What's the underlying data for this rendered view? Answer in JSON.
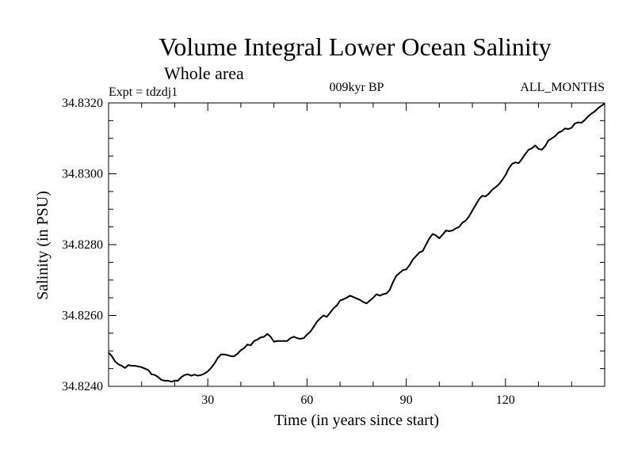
{
  "chart_data": {
    "type": "line",
    "title": "Volume Integral Lower Ocean Salinity",
    "subtitle": "Whole area",
    "experiment_label": "Expt = tdzdj1",
    "period_label": "009kyr BP",
    "months_label": "ALL_MONTHS",
    "xlabel": "Time (in years since start)",
    "ylabel": "Salinity (in PSU)",
    "xlim": [
      0,
      150
    ],
    "ylim": [
      34.824,
      34.832
    ],
    "x_ticks": [
      30,
      60,
      90,
      120
    ],
    "x_tick_labels": [
      "30",
      "60",
      "90",
      "120"
    ],
    "y_ticks": [
      34.824,
      34.826,
      34.828,
      34.83,
      34.832
    ],
    "y_tick_labels": [
      "34.8240",
      "34.8260",
      "34.8280",
      "34.8300",
      "34.8320"
    ],
    "series": [
      {
        "name": "Salinity",
        "color": "#000000",
        "x": [
          0,
          1,
          2,
          3,
          4,
          5,
          6,
          7,
          8,
          10,
          12,
          13,
          14,
          15,
          16,
          17,
          18,
          19,
          20,
          21,
          22,
          23,
          24,
          25,
          26,
          27,
          28,
          29,
          30,
          31,
          32,
          33,
          34,
          35,
          36,
          37,
          38,
          39,
          40,
          41,
          42,
          43,
          44,
          45,
          46,
          47,
          48,
          49,
          50,
          51,
          52,
          53,
          54,
          55,
          56,
          57,
          58,
          59,
          60,
          61,
          62,
          63,
          64,
          65,
          66,
          67,
          68,
          69,
          70,
          71,
          72,
          73,
          74,
          75,
          76,
          77,
          78,
          79,
          80,
          81,
          82,
          83,
          84,
          85,
          86,
          87,
          88,
          89,
          90,
          91,
          92,
          93,
          94,
          95,
          96,
          97,
          98,
          99,
          100,
          101,
          102,
          103,
          104,
          105,
          106,
          107,
          108,
          109,
          110,
          111,
          112,
          113,
          114,
          115,
          116,
          117,
          118,
          119,
          120,
          121,
          122,
          123,
          124,
          125,
          126,
          127,
          128,
          129,
          130,
          131,
          132,
          133,
          134,
          135,
          136,
          137,
          138,
          139,
          140,
          141,
          142,
          143,
          144,
          145,
          146,
          147,
          148,
          149,
          150
        ],
        "values": [
          34.82495,
          34.82485,
          34.8247,
          34.82462,
          34.82458,
          34.82452,
          34.8246,
          34.82458,
          34.82458,
          34.82454,
          34.82446,
          34.82434,
          34.82432,
          34.82426,
          34.82418,
          34.82416,
          34.82416,
          34.82413,
          34.82416,
          34.82416,
          34.82426,
          34.82432,
          34.82434,
          34.8243,
          34.82433,
          34.8243,
          34.82432,
          34.82436,
          34.82442,
          34.82452,
          34.82464,
          34.8248,
          34.8249,
          34.8249,
          34.82488,
          34.82485,
          34.82485,
          34.82492,
          34.82502,
          34.82508,
          34.82518,
          34.82516,
          34.82528,
          34.82532,
          34.82538,
          34.8254,
          34.82548,
          34.8254,
          34.82526,
          34.82528,
          34.82528,
          34.82528,
          34.82528,
          34.82536,
          34.8254,
          34.82536,
          34.82534,
          34.82536,
          34.82546,
          34.82554,
          34.82568,
          34.82582,
          34.82592,
          34.826,
          34.82596,
          34.82608,
          34.8262,
          34.82628,
          34.82642,
          34.82646,
          34.8265,
          34.82656,
          34.82652,
          34.82648,
          34.82644,
          34.82638,
          34.82634,
          34.82642,
          34.8265,
          34.8266,
          34.82656,
          34.8266,
          34.82662,
          34.82672,
          34.82694,
          34.82712,
          34.8272,
          34.82728,
          34.8273,
          34.82742,
          34.82758,
          34.82768,
          34.82778,
          34.82782,
          34.828,
          34.82818,
          34.8283,
          34.82826,
          34.82818,
          34.82828,
          34.8284,
          34.82838,
          34.8284,
          34.82846,
          34.8285,
          34.82862,
          34.82868,
          34.8288,
          34.82896,
          34.82912,
          34.82928,
          34.82938,
          34.82936,
          34.82944,
          34.82955,
          34.82962,
          34.8297,
          34.82982,
          34.82996,
          34.83015,
          34.83028,
          34.83032,
          34.8303,
          34.83042,
          34.83056,
          34.83068,
          34.83072,
          34.8308,
          34.8307,
          34.83068,
          34.83078,
          34.83094,
          34.831,
          34.83106,
          34.83116,
          34.8312,
          34.83128,
          34.83126,
          34.8313,
          34.83142,
          34.83145,
          34.83144,
          34.83152,
          34.83162,
          34.8317,
          34.83176,
          34.83185,
          34.83192,
          34.83198
        ]
      }
    ]
  }
}
